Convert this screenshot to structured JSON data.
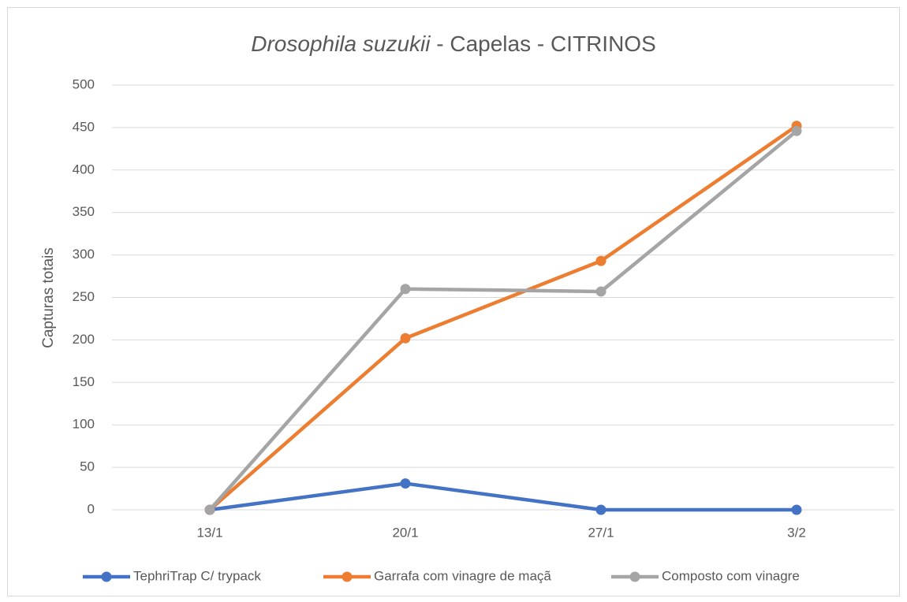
{
  "chart_data": {
    "type": "line",
    "title": [
      "Drosophila suzukii",
      " - Capelas - CITRINOS"
    ],
    "y_label": "Capturas totais",
    "categories": [
      "13/1",
      "20/1",
      "27/1",
      "3/2"
    ],
    "series": [
      {
        "name": "TephriTrap C/ trypack",
        "color": "#4472c4",
        "values": [
          0,
          31,
          0,
          0
        ]
      },
      {
        "name": "Garrafa com vinagre de maçã",
        "color": "#ed7d31",
        "values": [
          0,
          202,
          293,
          452
        ]
      },
      {
        "name": "Composto com vinagre",
        "color": "#a5a5a5",
        "values": [
          0,
          260,
          257,
          446
        ]
      }
    ],
    "ylim": [
      0,
      500
    ],
    "yticks": [
      0,
      50,
      100,
      150,
      200,
      250,
      300,
      350,
      400,
      450,
      500
    ],
    "grid": true,
    "legend": "bottom"
  }
}
